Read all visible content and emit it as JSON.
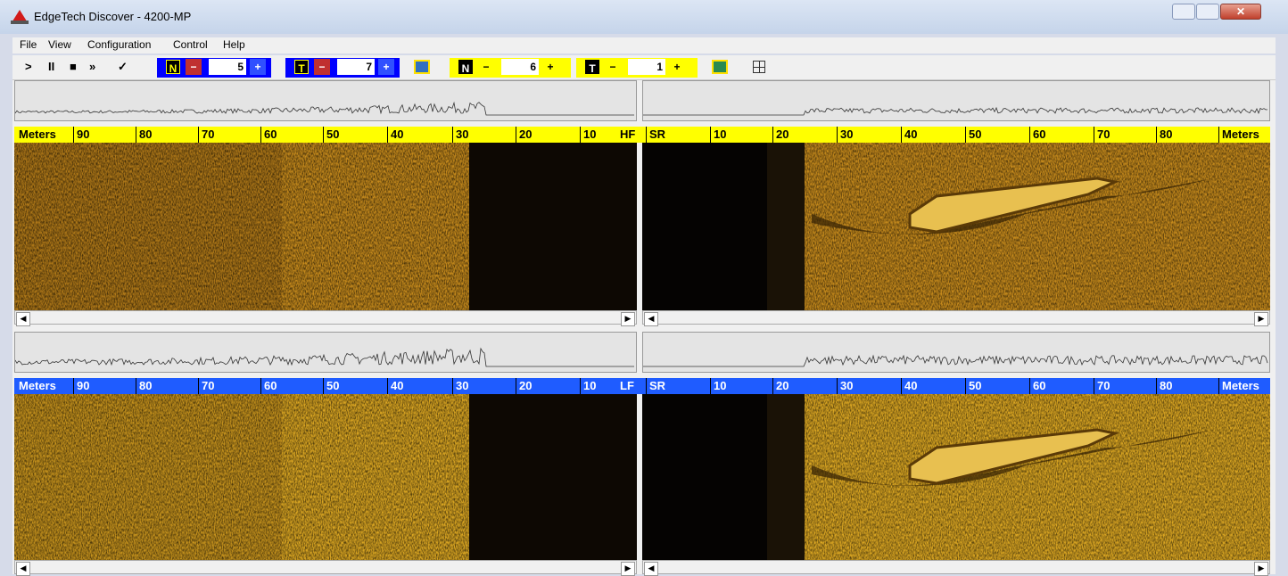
{
  "window": {
    "title": "EdgeTech Discover - 4200-MP"
  },
  "menu": [
    "File",
    "View",
    "Configuration",
    "Control",
    "Help"
  ],
  "toolbar": {
    "transport": [
      ">",
      "II",
      "■",
      "»",
      "✓"
    ],
    "groups": [
      {
        "label": "N",
        "minus": "−",
        "value": 5,
        "plus": "+",
        "color": "#0000ff"
      },
      {
        "label": "T",
        "minus": "−",
        "value": 7,
        "plus": "+",
        "color": "#0000ff"
      },
      {
        "label": "N",
        "minus": "−",
        "value": 6,
        "plus": "+",
        "color": "#ffff00"
      },
      {
        "label": "T",
        "minus": "−",
        "value": 1,
        "plus": "+",
        "color": "#ffff00"
      }
    ]
  },
  "panes": [
    {
      "color": "#ffff00",
      "left_scale": [
        "Meters",
        90,
        80,
        70,
        60,
        50,
        40,
        30,
        20,
        10,
        "HF"
      ],
      "right_scale": [
        "SR",
        10,
        20,
        30,
        40,
        50,
        60,
        70,
        80,
        "Meters"
      ]
    },
    {
      "color": "#1f5cff",
      "left_scale": [
        "Meters",
        90,
        80,
        70,
        60,
        50,
        40,
        30,
        20,
        10,
        "LF"
      ],
      "right_scale": [
        "SR",
        10,
        20,
        30,
        40,
        50,
        60,
        70,
        80,
        "Meters"
      ]
    }
  ]
}
